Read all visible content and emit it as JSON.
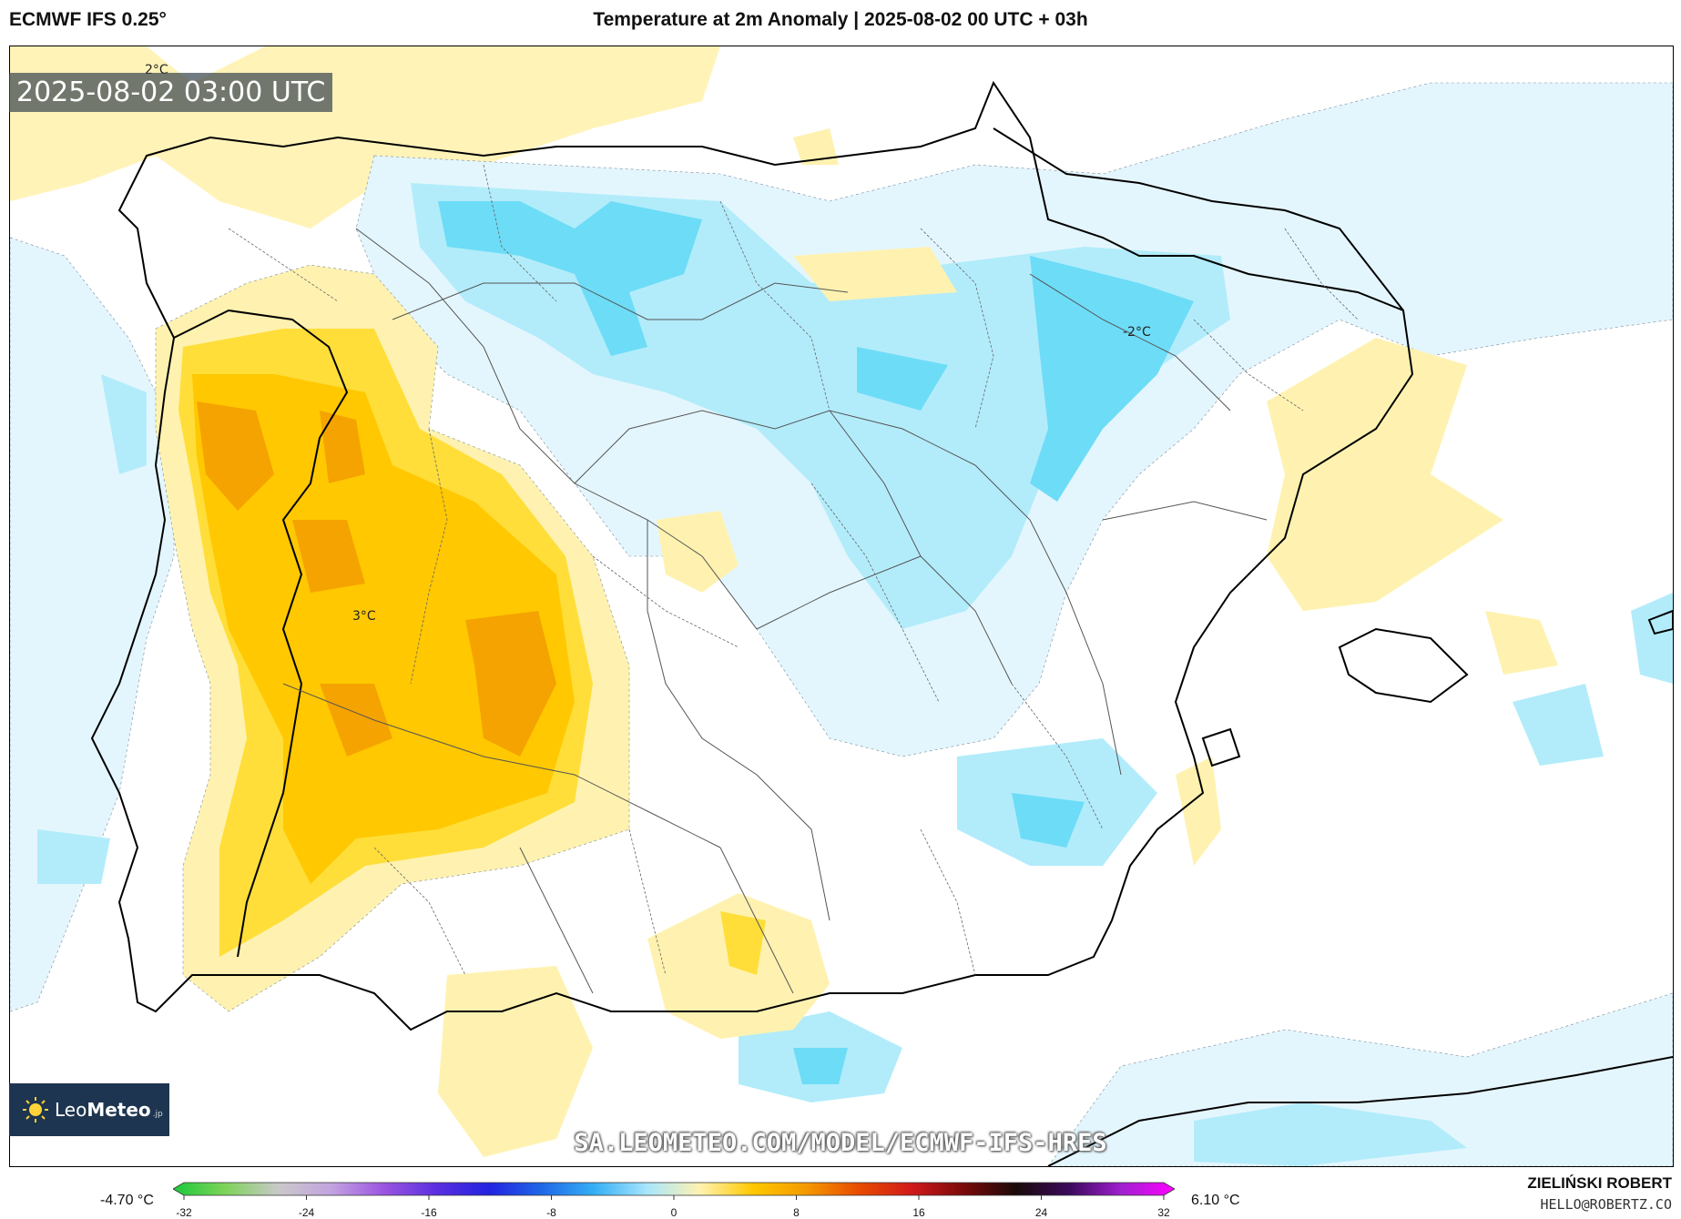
{
  "header": {
    "model": "ECMWF IFS 0.25°",
    "title": "Temperature at 2m Anomaly | 2025-08-02 00 UTC + 03h"
  },
  "map": {
    "timestamp": "2025-08-02 03:00 UTC",
    "contour_labels": [
      "2°C",
      "-2°C",
      "3°C"
    ],
    "watermark": "SA.LEOMETEO.COM/MODEL/ECMWF-IFS-HRES",
    "region": "Iberian Peninsula",
    "colors": {
      "strong_warm": "#f5a300",
      "warm": "#ffc800",
      "mild_warm": "#ffde3a",
      "slight_warm": "#fff2b0",
      "slight_cool": "#e4f6fd",
      "mild_cool": "#b2ecfb",
      "cool": "#6ddcf7",
      "strong_cool": "#2fc8f0"
    }
  },
  "logo": {
    "name_light": "Leo",
    "name_bold": "Meteo",
    "suffix": ".jp"
  },
  "legend": {
    "min_label": "-4.70 °C",
    "max_label": "6.10 °C",
    "ticks": [
      "-32",
      "-24",
      "-16",
      "-8",
      "0",
      "8",
      "16",
      "24",
      "32"
    ],
    "tick_values": [
      -32,
      -24,
      -16,
      -8,
      0,
      8,
      16,
      24,
      32
    ],
    "range": [
      -32,
      32
    ],
    "colormap": [
      "#19c93b",
      "#7fd35a",
      "#c9c9c9",
      "#c3a3e0",
      "#9b55e0",
      "#5a2fe0",
      "#2323e0",
      "#1f68e6",
      "#36b0f5",
      "#a9e6fb",
      "#fff2b0",
      "#ffc800",
      "#f59a00",
      "#e74c00",
      "#d11a1a",
      "#7a0a0a",
      "#1a0a0a",
      "#3b0a5c",
      "#a020d0",
      "#ff00ff"
    ]
  },
  "credit": {
    "name": "ZIELIŃSKI ROBERT",
    "email": "HELLO@ROBERTZ.CO"
  }
}
